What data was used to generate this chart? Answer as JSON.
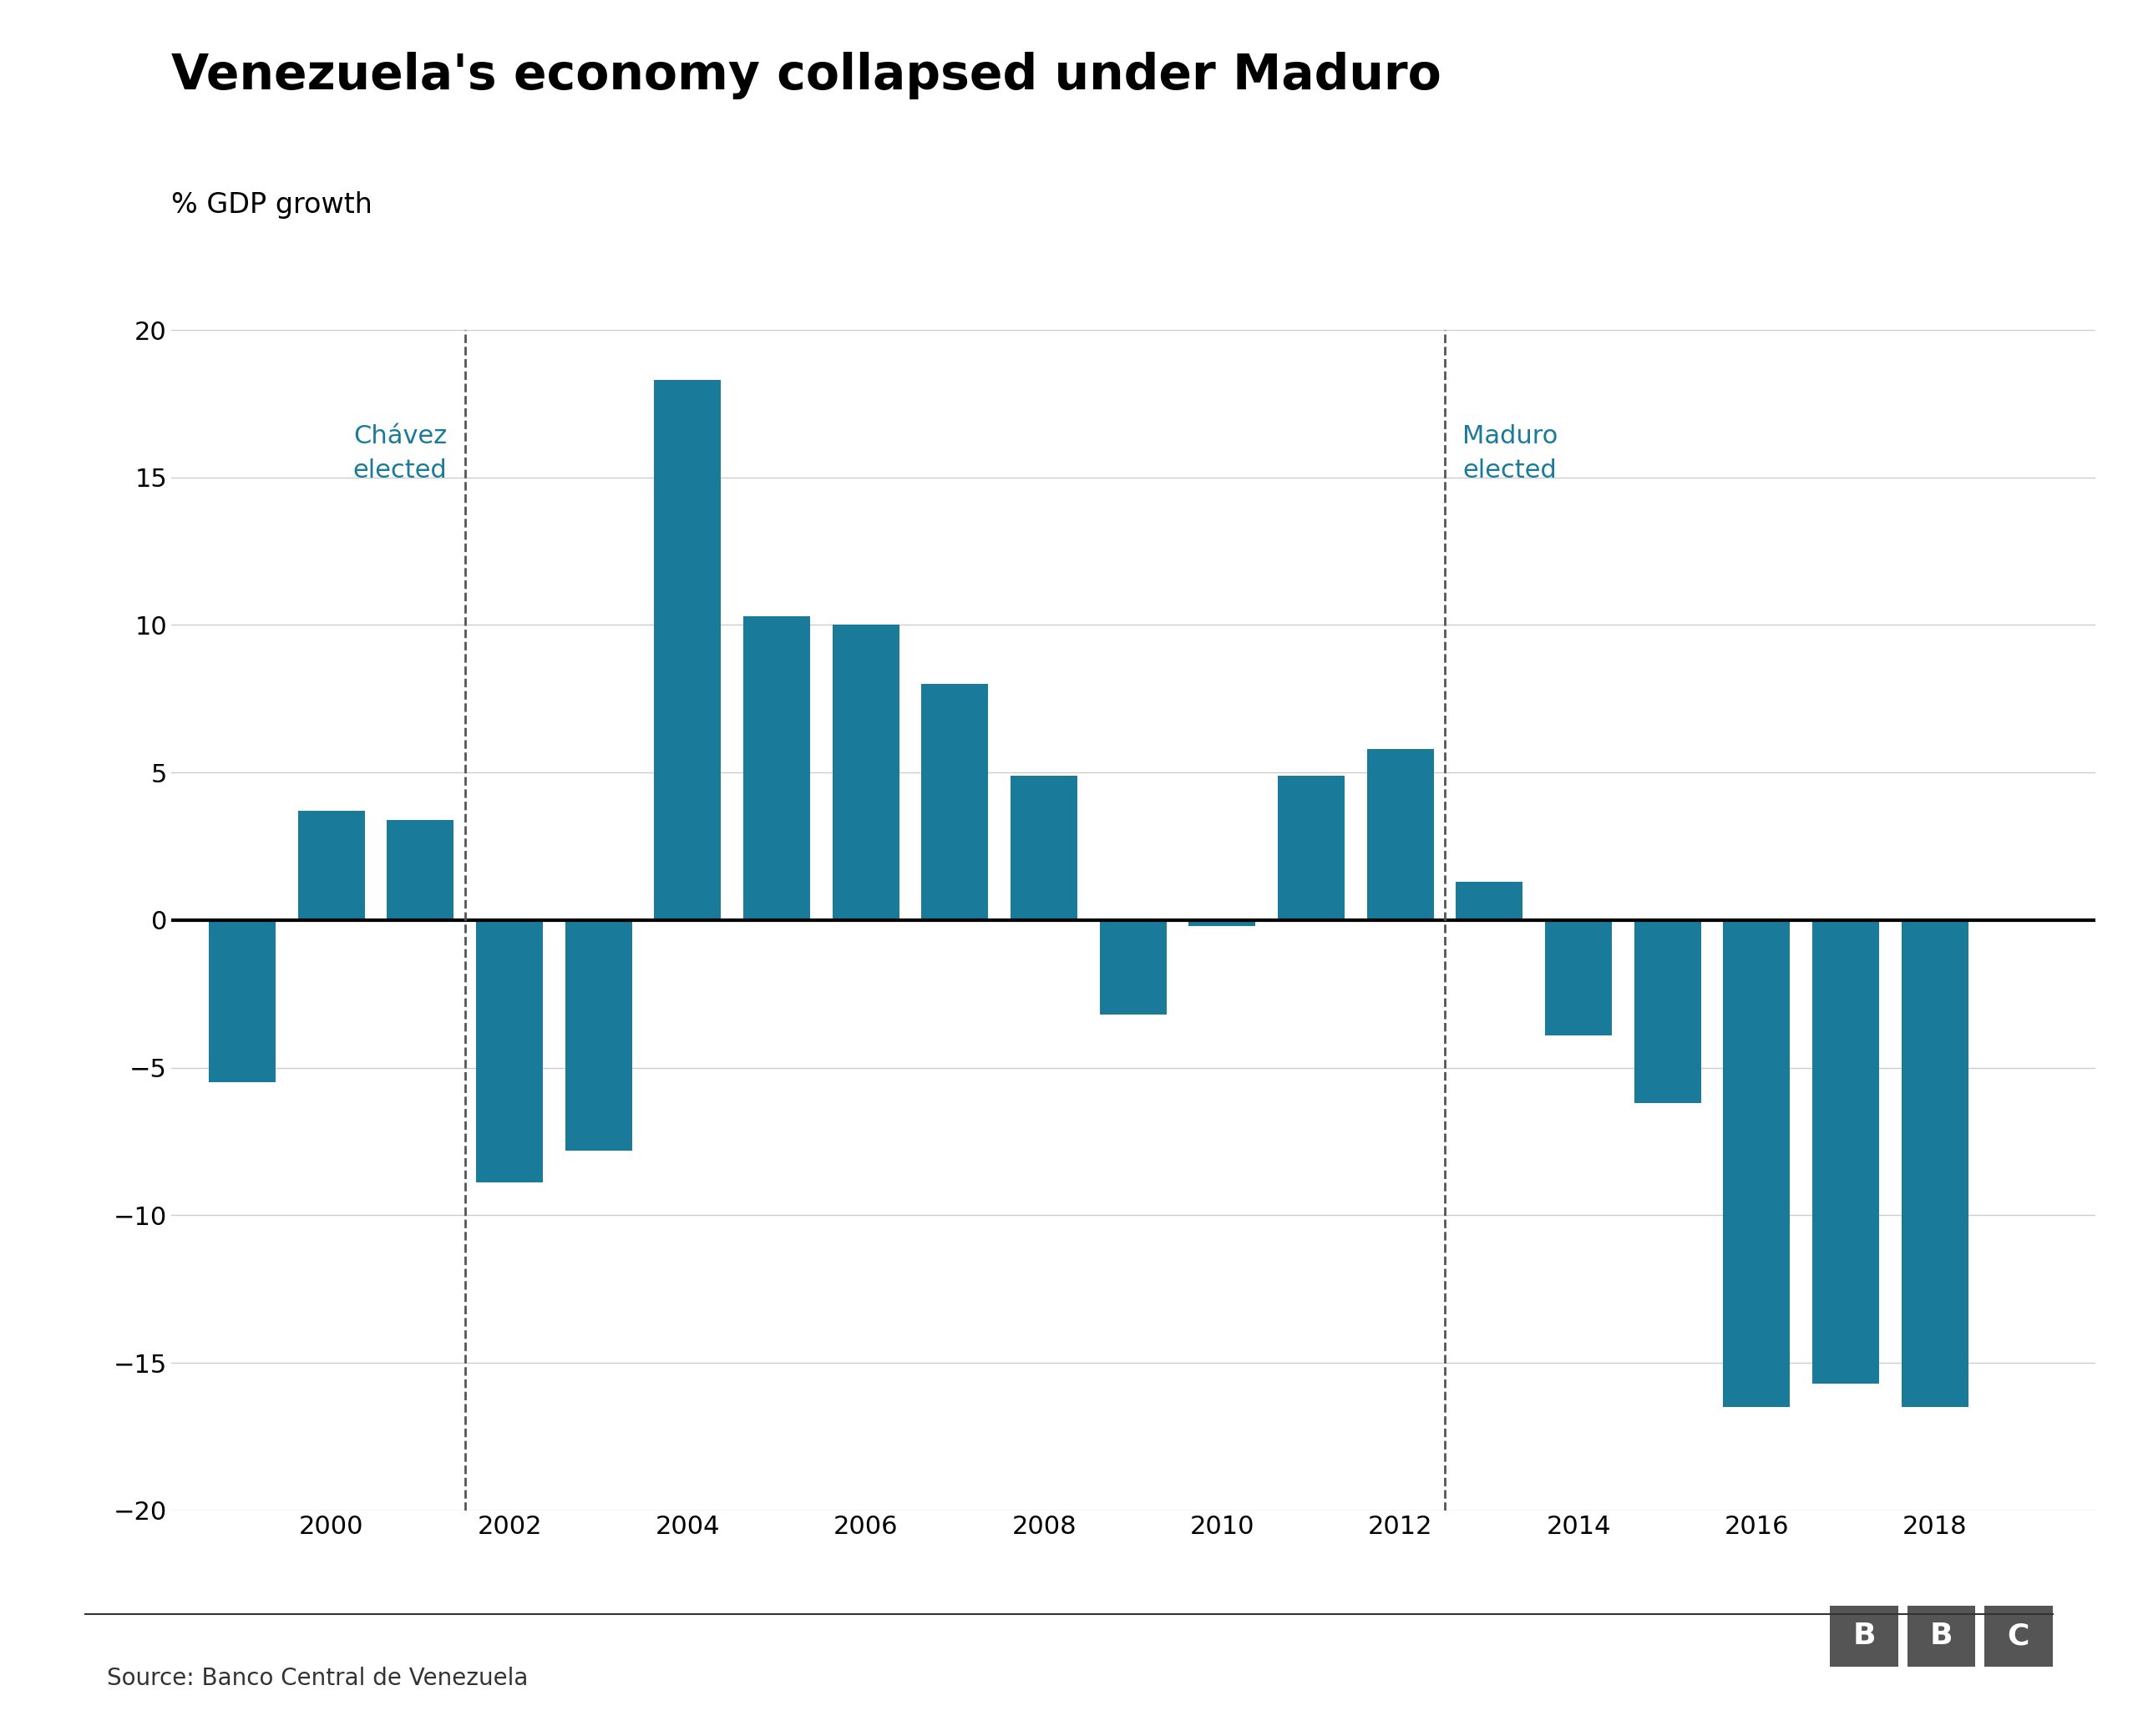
{
  "title": "Venezuela's economy collapsed under Maduro",
  "ylabel": "% GDP growth",
  "years": [
    1999,
    2000,
    2001,
    2002,
    2003,
    2004,
    2005,
    2006,
    2007,
    2008,
    2009,
    2010,
    2011,
    2012,
    2013,
    2014,
    2015,
    2016,
    2017,
    2018
  ],
  "values": [
    -5.5,
    3.7,
    3.4,
    -8.9,
    -7.8,
    18.3,
    10.3,
    10.0,
    8.0,
    4.9,
    -3.2,
    -0.2,
    4.9,
    5.8,
    1.3,
    -3.9,
    -6.2,
    -16.5,
    -15.7,
    -16.5
  ],
  "bar_color": "#1a7a9a",
  "zero_line_color": "#000000",
  "grid_color": "#cccccc",
  "chavez_year": 2001.5,
  "maduro_year": 2012.5,
  "chavez_label": "Chávez\nelected",
  "maduro_label": "Maduro\nelected",
  "annotation_color": "#1a7a9a",
  "dashed_line_color": "#555555",
  "source_text": "Source: Banco Central de Venezuela",
  "bbc_text": "BBC",
  "bbc_bg_color": "#555555",
  "ylim": [
    -20,
    20
  ],
  "yticks": [
    -20,
    -15,
    -10,
    -5,
    0,
    5,
    10,
    15,
    20
  ],
  "xticks": [
    1999,
    2000,
    2001,
    2002,
    2003,
    2004,
    2005,
    2006,
    2007,
    2008,
    2009,
    2010,
    2011,
    2012,
    2013,
    2014,
    2015,
    2016,
    2017,
    2018,
    2019
  ],
  "xtick_labels": [
    "",
    "2000",
    "",
    "2002",
    "",
    "2004",
    "",
    "2006",
    "",
    "2008",
    "",
    "2010",
    "",
    "2012",
    "",
    "2014",
    "",
    "2016",
    "",
    "2018",
    ""
  ],
  "background_color": "#ffffff",
  "title_fontsize": 42,
  "ylabel_fontsize": 24,
  "tick_fontsize": 22,
  "annotation_fontsize": 22,
  "source_fontsize": 20,
  "bar_width": 0.75,
  "xlim_left": 1998.2,
  "xlim_right": 2019.8
}
